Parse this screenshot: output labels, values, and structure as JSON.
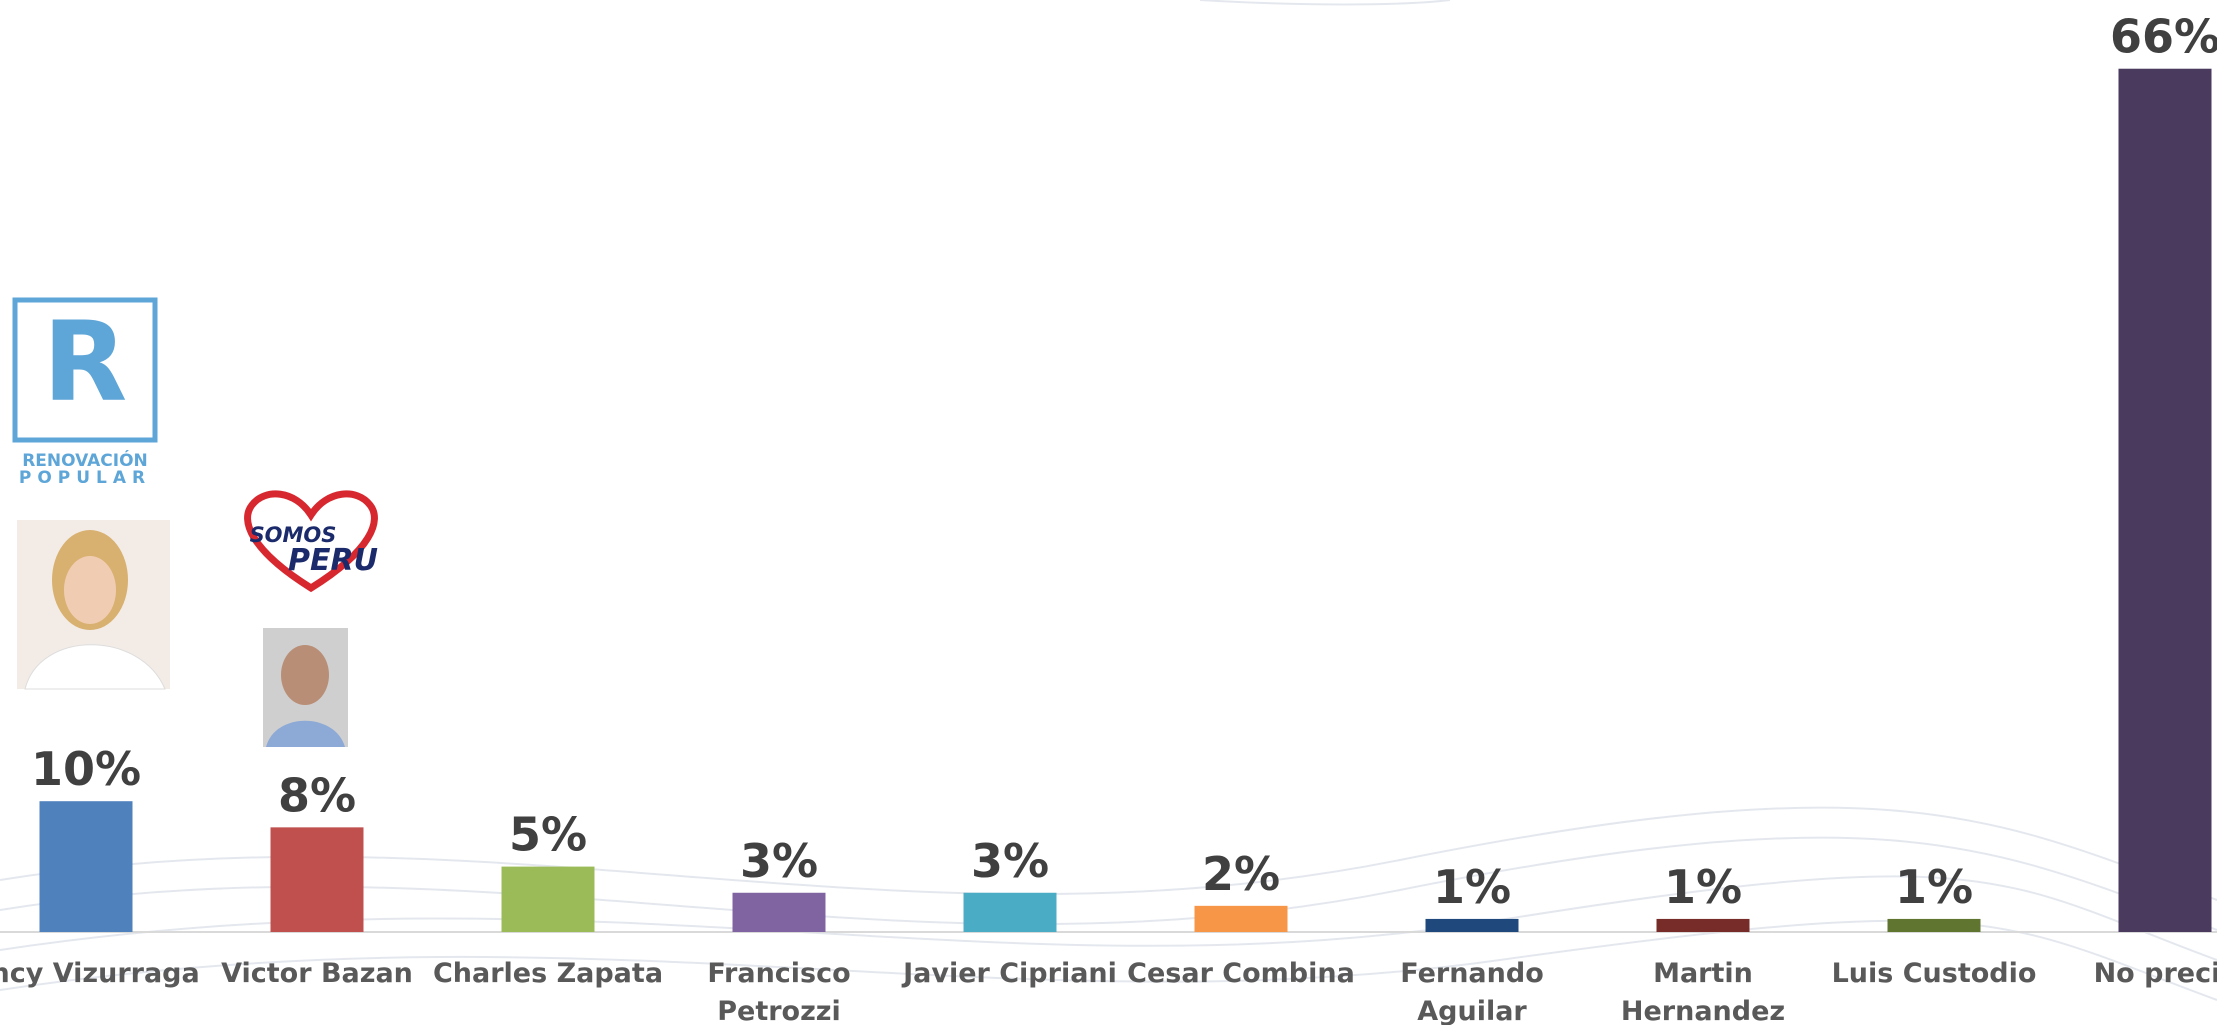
{
  "chart_data": {
    "type": "bar",
    "categories": [
      "ancy Vizurraga",
      "Victor Bazan",
      "Charles Zapata",
      "Francisco\nPetrozzi",
      "Javier Cipriani",
      "Cesar Combina",
      "Fernando Aguilar",
      "Martin\nHernandez",
      "Luis Custodio",
      "No precis"
    ],
    "values": [
      10,
      8,
      5,
      3,
      3,
      2,
      1,
      1,
      1,
      66
    ],
    "value_labels": [
      "10%",
      "8%",
      "5%",
      "3%",
      "3%",
      "2%",
      "1%",
      "1%",
      "1%",
      "66%"
    ],
    "colors": [
      "#4f81bd",
      "#c0504d",
      "#9bbb59",
      "#8064a2",
      "#4bacc6",
      "#f79646",
      "#1f497d",
      "#772c2a",
      "#5f7530",
      "#4a3a5e"
    ]
  },
  "logos": {
    "renovacion": {
      "letter": "R",
      "line1": "RENOVACIÓN",
      "line2": "POPULAR"
    },
    "somos_peru": {
      "line1": "SOMOS",
      "line2": "PERU"
    }
  }
}
